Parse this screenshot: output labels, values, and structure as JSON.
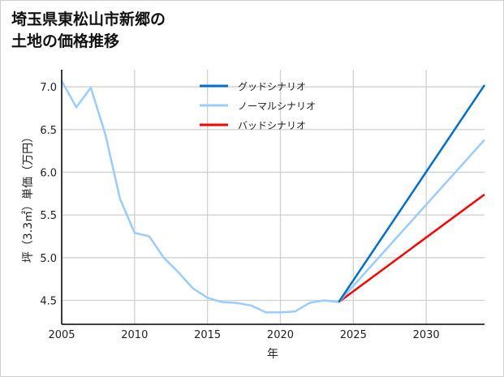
{
  "chart_data": {
    "type": "line",
    "title": "埼玉県東松山市新郷の\n土地の価格推移",
    "xlabel": "年",
    "ylabel": "坪（3.3㎡）単価（万円）",
    "xlim": [
      2005,
      2034
    ],
    "ylim": [
      4.22,
      7.2
    ],
    "xticks": [
      2005,
      2010,
      2015,
      2020,
      2025,
      2030
    ],
    "yticks": [
      "4.5",
      "5.0",
      "5.5",
      "6.0",
      "6.5",
      "7.0"
    ],
    "grid": true,
    "legend_position": "top-center",
    "history": {
      "color": "#99ccff",
      "x": [
        2005,
        2006,
        2007,
        2008,
        2009,
        2010,
        2011,
        2012,
        2013,
        2014,
        2015,
        2016,
        2017,
        2018,
        2019,
        2020,
        2021,
        2022,
        2023,
        2024
      ],
      "y": [
        7.07,
        6.76,
        6.99,
        6.44,
        5.69,
        5.29,
        5.25,
        5.0,
        4.83,
        4.64,
        4.53,
        4.48,
        4.47,
        4.44,
        4.36,
        4.36,
        4.37,
        4.47,
        4.5,
        4.48
      ]
    },
    "series": [
      {
        "name": "グッドシナリオ",
        "color": "#0070cc",
        "x": [
          2024,
          2034
        ],
        "y": [
          4.48,
          7.02
        ]
      },
      {
        "name": "ノーマルシナリオ",
        "color": "#99ccff",
        "x": [
          2024,
          2034
        ],
        "y": [
          4.48,
          6.38
        ]
      },
      {
        "name": "バッドシナリオ",
        "color": "#ff0000",
        "x": [
          2024,
          2034
        ],
        "y": [
          4.48,
          5.74
        ]
      }
    ]
  }
}
